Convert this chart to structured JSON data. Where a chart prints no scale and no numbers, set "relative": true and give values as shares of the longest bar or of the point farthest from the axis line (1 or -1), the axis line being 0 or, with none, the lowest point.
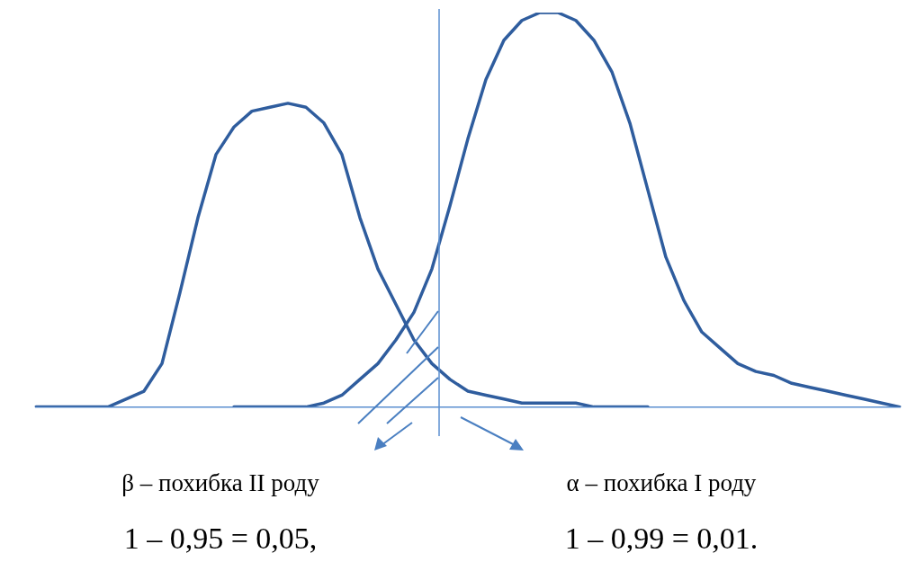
{
  "chart_data": {
    "type": "line",
    "relative": true,
    "grid": false,
    "legend": false,
    "marker": "none",
    "line_style": "solid",
    "categories": [
      null,
      null,
      null,
      null,
      null,
      null,
      null,
      null,
      null,
      null,
      null,
      null,
      null,
      null,
      null,
      null,
      null,
      null,
      null,
      null,
      null,
      null,
      null,
      null,
      null,
      null,
      null,
      null,
      null,
      null,
      null,
      null,
      null,
      null,
      null,
      null,
      null,
      null,
      null,
      null,
      null,
      null,
      null,
      null,
      null,
      null,
      null,
      null,
      null
    ],
    "series": [
      {
        "color": "#2f5d9e",
        "values": [
          0,
          0,
          0,
          0,
          0,
          0.02,
          0.04,
          0.11,
          0.29,
          0.48,
          0.64,
          0.71,
          0.75,
          0.76,
          0.77,
          0.76,
          0.72,
          0.64,
          0.48,
          0.35,
          0.26,
          0.17,
          0.11,
          0.07,
          0.04,
          0.03,
          0.02,
          0.01,
          0.01,
          0.01,
          0.01,
          0,
          0,
          0,
          0,
          null,
          null,
          null,
          null,
          null,
          null,
          null,
          null,
          null,
          null,
          null,
          null,
          null,
          null
        ]
      },
      {
        "color": "#2f5d9e",
        "values": [
          null,
          null,
          null,
          null,
          null,
          null,
          null,
          null,
          null,
          null,
          null,
          0,
          0,
          0,
          0,
          0,
          0.01,
          0.03,
          0.07,
          0.11,
          0.17,
          0.24,
          0.35,
          0.51,
          0.68,
          0.83,
          0.93,
          0.98,
          1,
          1,
          0.98,
          0.93,
          0.85,
          0.72,
          0.55,
          0.38,
          0.27,
          0.19,
          0.15,
          0.11,
          0.09,
          0.08,
          0.06,
          0.05,
          0.04,
          0.03,
          0.02,
          0.01,
          0
        ]
      }
    ],
    "annotations": [
      "β – похибка II роду",
      "α – похибка I роду",
      "1 – 0,95 = 0,05,",
      "1 – 0,99 = 0,01."
    ]
  }
}
